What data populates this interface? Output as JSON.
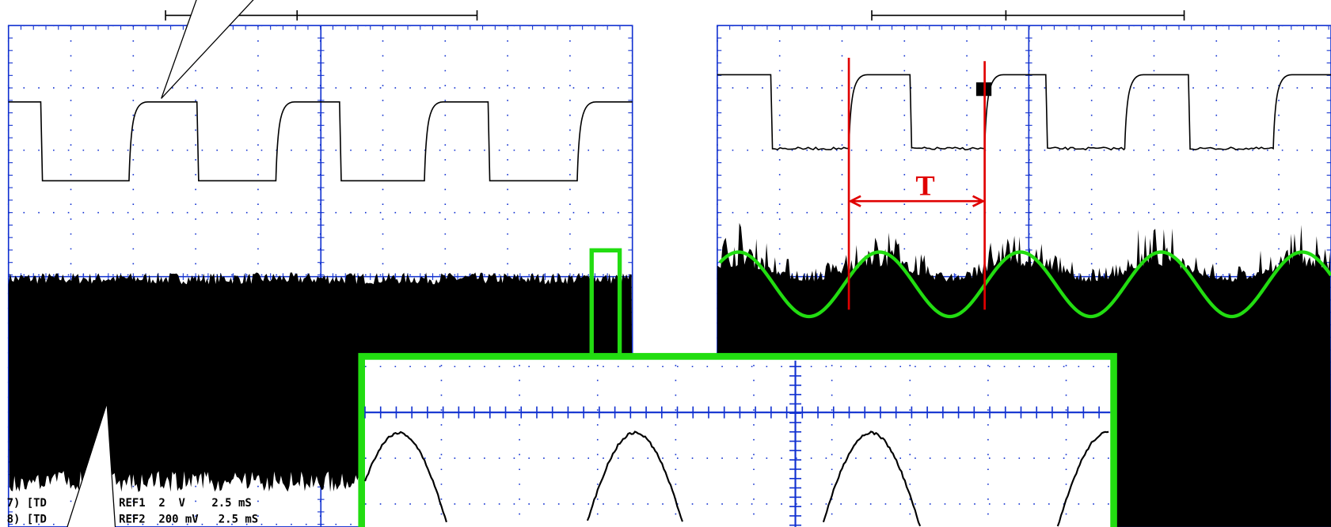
{
  "left_scope": {
    "status_lines": [
      {
        "channel": "7) [TD",
        "settings": "REF1  2  V    2.5 mS"
      },
      {
        "channel": "8) [TD",
        "settings": "REF2  200 mV   2.5 mS"
      }
    ]
  },
  "right_scope": {
    "period_label": "T"
  }
}
